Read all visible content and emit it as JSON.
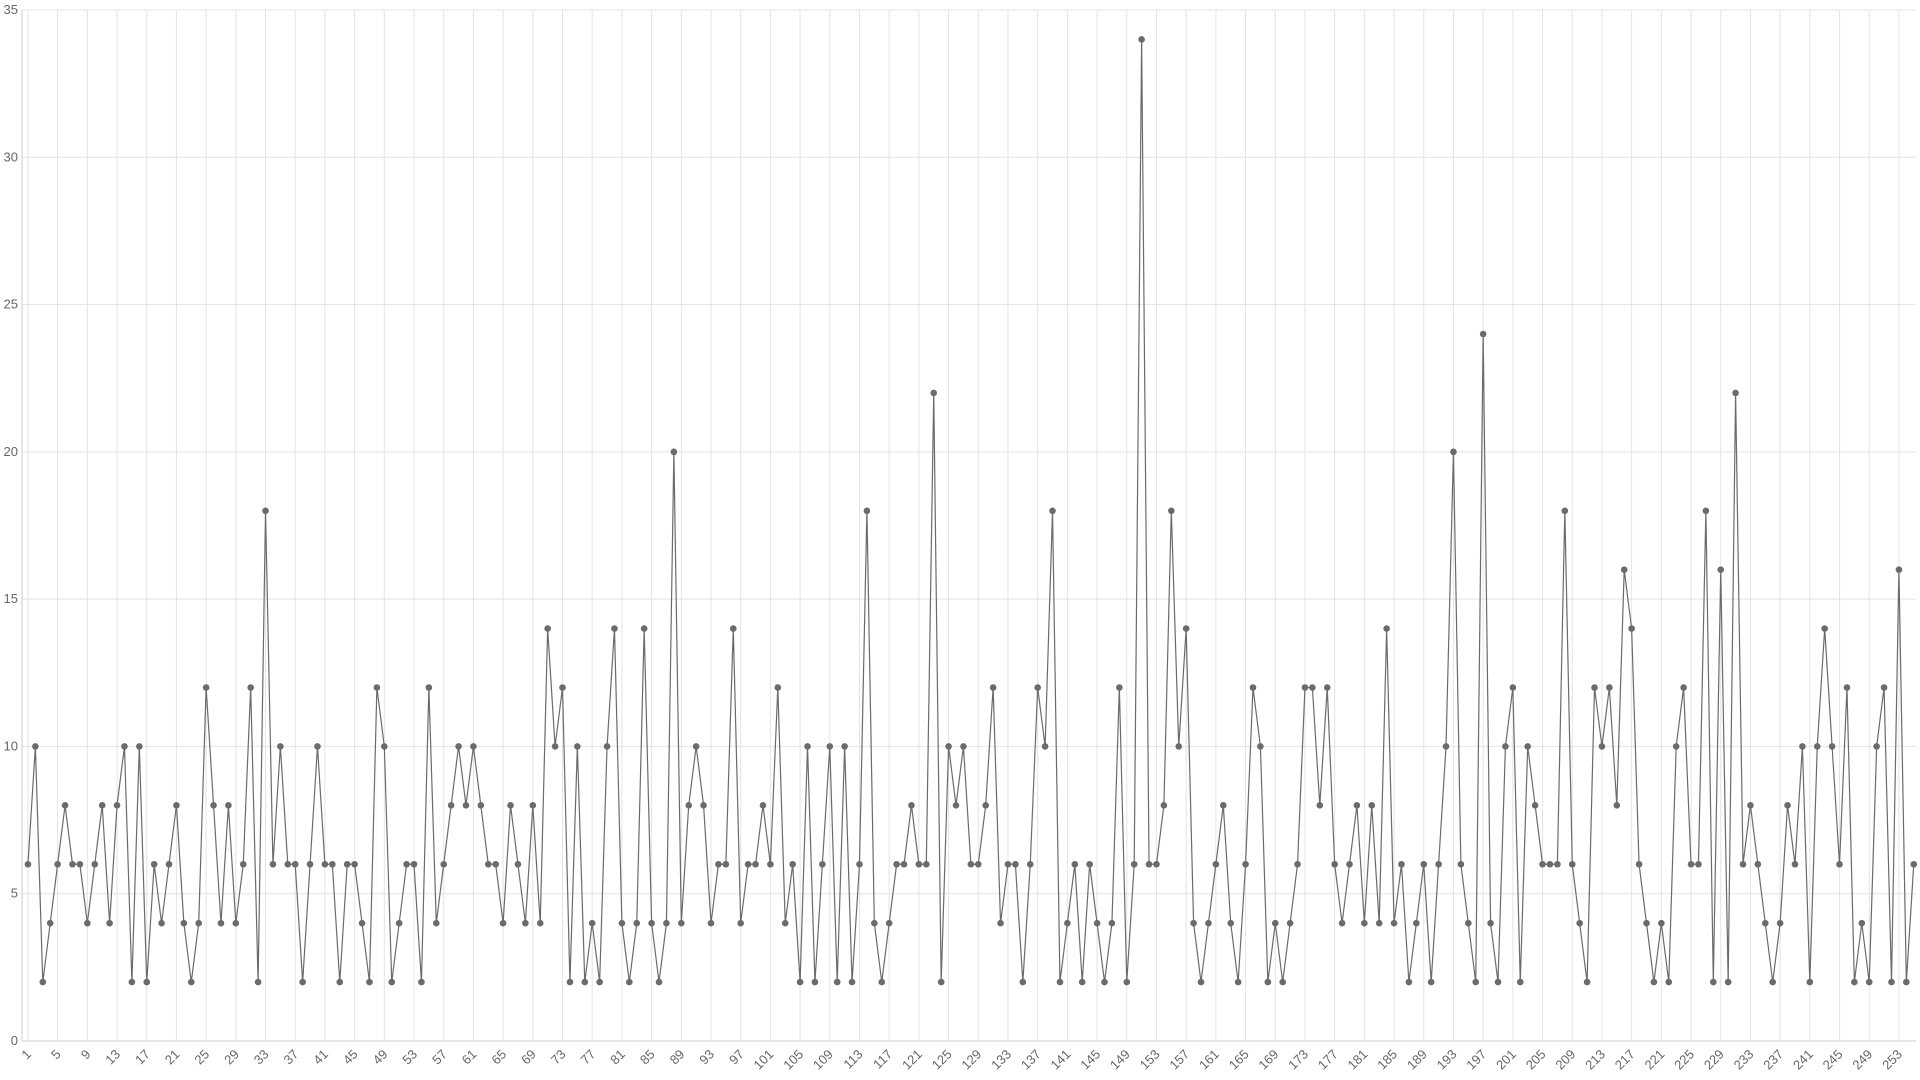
{
  "chart_data": {
    "type": "line",
    "x": [
      1,
      2,
      3,
      4,
      5,
      6,
      7,
      8,
      9,
      10,
      11,
      12,
      13,
      14,
      15,
      16,
      17,
      18,
      19,
      20,
      21,
      22,
      23,
      24,
      25,
      26,
      27,
      28,
      29,
      30,
      31,
      32,
      33,
      34,
      35,
      36,
      37,
      38,
      39,
      40,
      41,
      42,
      43,
      44,
      45,
      46,
      47,
      48,
      49,
      50,
      51,
      52,
      53,
      54,
      55,
      56,
      57,
      58,
      59,
      60,
      61,
      62,
      63,
      64,
      65,
      66,
      67,
      68,
      69,
      70,
      71,
      72,
      73,
      74,
      75,
      76,
      77,
      78,
      79,
      80,
      81,
      82,
      83,
      84,
      85,
      86,
      87,
      88,
      89,
      90,
      91,
      92,
      93,
      94,
      95,
      96,
      97,
      98,
      99,
      100,
      101,
      102,
      103,
      104,
      105,
      106,
      107,
      108,
      109,
      110,
      111,
      112,
      113,
      114,
      115,
      116,
      117,
      118,
      119,
      120,
      121,
      122,
      123,
      124,
      125,
      126,
      127,
      128,
      129,
      130,
      131,
      132,
      133,
      134,
      135,
      136,
      137,
      138,
      139,
      140,
      141,
      142,
      143,
      144,
      145,
      146,
      147,
      148,
      149,
      150,
      151,
      152,
      153,
      154,
      155,
      156,
      157,
      158,
      159,
      160,
      161,
      162,
      163,
      164,
      165,
      166,
      167,
      168,
      169,
      170,
      171,
      172,
      173,
      174,
      175,
      176,
      177,
      178,
      179,
      180,
      181,
      182,
      183,
      184,
      185,
      186,
      187,
      188,
      189,
      190,
      191,
      192,
      193,
      194,
      195,
      196,
      197,
      198,
      199,
      200,
      201,
      202,
      203,
      204,
      205,
      206,
      207,
      208,
      209,
      210,
      211,
      212,
      213,
      214,
      215,
      216,
      217,
      218,
      219,
      220,
      221,
      222,
      223,
      224,
      225,
      226,
      227,
      228,
      229,
      230,
      231,
      232,
      233,
      234,
      235,
      236,
      237,
      238,
      239,
      240,
      241,
      242,
      243,
      244,
      245,
      246,
      247,
      248,
      249,
      250,
      251,
      252,
      253,
      254,
      255
    ],
    "series": [
      {
        "color": "#6b6b6b",
        "values": [
          6,
          10,
          2,
          4,
          6,
          8,
          6,
          6,
          4,
          6,
          8,
          4,
          8,
          10,
          2,
          10,
          2,
          6,
          4,
          6,
          8,
          4,
          2,
          4,
          12,
          8,
          4,
          8,
          4,
          6,
          12,
          2,
          18,
          6,
          10,
          6,
          6,
          2,
          6,
          10,
          6,
          6,
          2,
          6,
          6,
          4,
          2,
          12,
          10,
          2,
          4,
          6,
          6,
          2,
          12,
          4,
          6,
          8,
          10,
          8,
          10,
          8,
          6,
          6,
          4,
          8,
          6,
          4,
          8,
          4,
          14,
          10,
          12,
          2,
          10,
          2,
          4,
          2,
          10,
          14,
          4,
          2,
          4,
          14,
          4,
          2,
          4,
          20,
          4,
          8,
          10,
          8,
          4,
          6,
          6,
          14,
          4,
          6,
          6,
          8,
          6,
          12,
          4,
          6,
          2,
          10,
          2,
          6,
          10,
          2,
          10,
          2,
          6,
          18,
          4,
          2,
          4,
          6,
          6,
          8,
          6,
          6,
          22,
          2,
          10,
          8,
          10,
          6,
          6,
          8,
          12,
          4,
          6,
          6,
          2,
          6,
          12,
          10,
          18,
          2,
          4,
          6,
          2,
          6,
          4,
          2,
          4,
          12,
          2,
          6,
          34,
          6,
          6,
          8,
          18,
          10,
          14,
          4,
          2,
          4,
          6,
          8,
          4,
          2,
          6,
          12,
          10,
          2,
          4,
          2,
          4,
          6,
          12,
          12,
          8,
          12,
          6,
          4,
          6,
          8,
          4,
          8,
          4,
          14,
          4,
          6,
          2,
          4,
          6,
          2,
          6,
          10,
          20,
          6,
          4,
          2,
          24,
          4,
          2,
          10,
          12,
          2,
          10,
          8,
          6,
          6,
          6,
          18,
          6,
          4,
          2,
          12,
          10,
          12,
          8,
          16,
          14,
          6,
          4,
          2,
          4,
          2,
          10,
          12,
          6,
          6,
          18,
          2,
          16,
          2,
          22,
          6,
          8,
          6,
          4,
          2,
          4,
          8,
          6,
          10,
          2,
          10,
          14,
          10,
          6,
          12,
          2,
          4,
          2,
          10,
          12,
          2,
          16,
          2,
          6
        ]
      }
    ],
    "xlim": [
      0.2,
      255.3
    ],
    "xticks": [
      1,
      5,
      9,
      13,
      17,
      21,
      25,
      29,
      33,
      37,
      41,
      45,
      49,
      53,
      57,
      61,
      65,
      69,
      73,
      77,
      81,
      85,
      89,
      93,
      97,
      101,
      105,
      109,
      113,
      117,
      121,
      125,
      129,
      133,
      137,
      141,
      145,
      149,
      153,
      157,
      161,
      165,
      169,
      173,
      177,
      181,
      185,
      189,
      193,
      197,
      201,
      205,
      209,
      213,
      217,
      221,
      225,
      229,
      233,
      237,
      241,
      245,
      249,
      253
    ],
    "ylim": [
      0,
      35
    ],
    "yticks": [
      0,
      5,
      10,
      15,
      20,
      25,
      30,
      35
    ],
    "grid": true
  }
}
